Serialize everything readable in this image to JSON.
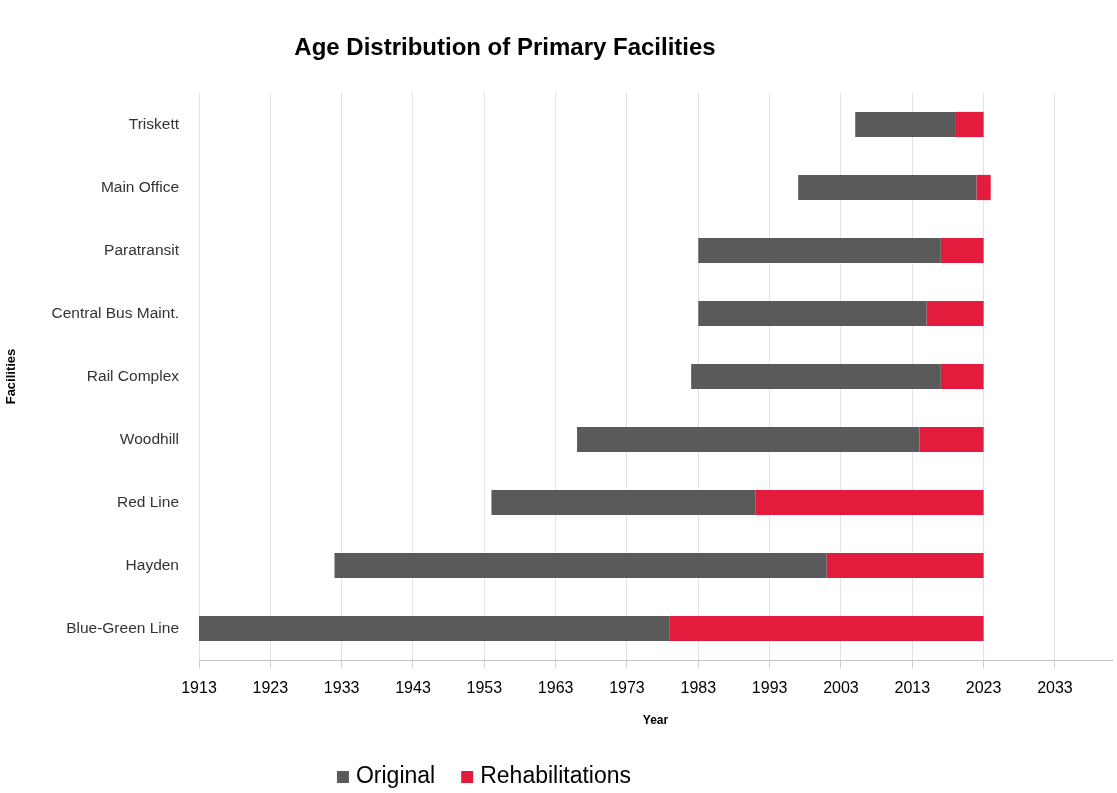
{
  "chart_data": {
    "type": "bar",
    "title": "Age Distribution of Primary Facilities",
    "xlabel": "Year",
    "ylabel": "Facilities",
    "orientation": "horizontal",
    "categories": [
      "Triskett",
      "Main Office",
      "Paratransit",
      "Central Bus Maint.",
      "Rail Complex",
      "Woodhill",
      "Red Line",
      "Hayden",
      "Blue-Green Line"
    ],
    "series": [
      {
        "name": "Original",
        "color": "#5a5a5a",
        "base": [
          2005,
          1997,
          1983,
          1983,
          1982,
          1966,
          1954,
          1932,
          1913
        ],
        "values": [
          14,
          25,
          34,
          32,
          35,
          48,
          37,
          69,
          66
        ]
      },
      {
        "name": "Rehabilitations",
        "color": "#e31b3d",
        "base": [
          2019,
          2022,
          2017,
          2015,
          2017,
          2014,
          1991,
          2001,
          1979
        ],
        "values": [
          4,
          2,
          6,
          8,
          6,
          9,
          32,
          22,
          44
        ]
      }
    ],
    "xlim": [
      1913,
      2041
    ],
    "xticks": [
      1913,
      1923,
      1933,
      1943,
      1953,
      1963,
      1973,
      1983,
      1993,
      2003,
      2013,
      2023,
      2033
    ],
    "grid": "x",
    "legend": "bottom"
  }
}
